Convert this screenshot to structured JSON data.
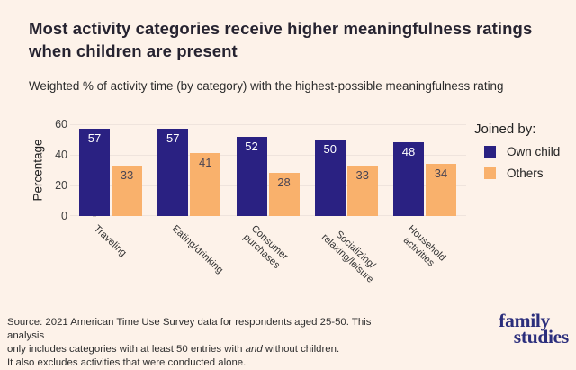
{
  "page": {
    "background": "#FDF2E9"
  },
  "header": {
    "title": "Most activity categories receive higher meaningfulness ratings when children are present",
    "subtitle": "Weighted % of activity time (by category) with the highest-possible meaningfulness rating"
  },
  "chart_data": {
    "type": "bar",
    "categories": [
      "Traveling",
      "Eating/drinking",
      "Consumer\npurchases",
      "Socializing/\nrelaxing/leisure",
      "Household\nactivities"
    ],
    "series": [
      {
        "name": "Own child",
        "color": "#2A2182",
        "label_color": "#FFFFFF",
        "values": [
          57,
          57,
          52,
          50,
          48
        ]
      },
      {
        "name": "Others",
        "color": "#F9B16C",
        "label_color": "#4A4553",
        "values": [
          33,
          41,
          28,
          33,
          34
        ]
      }
    ],
    "xlabel": "",
    "ylabel": "Percentage",
    "ylim": [
      0,
      60
    ],
    "yticks": [
      0,
      20,
      40,
      60
    ],
    "legend_title": "Joined by:",
    "legend_position": "right",
    "grid": "horizontal",
    "bar_value_labels": "inside-top"
  },
  "footer": {
    "source_line1": "Source: 2021 American Time Use Survey data for respondents aged 25-50. This analysis",
    "source_line2_pre": "only includes categories with at least 50 entries with ",
    "source_line2_italic": "and",
    "source_line2_post": " without children.",
    "source_line3": "It also excludes activities that were conducted alone.",
    "logo_line1": "family",
    "logo_line2": "studies"
  }
}
